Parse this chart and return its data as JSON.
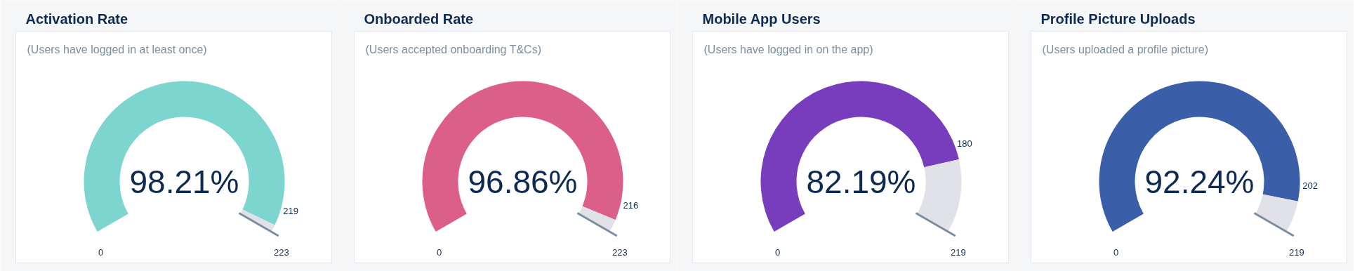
{
  "chart_data": [
    {
      "type": "donut",
      "title": "Activation Rate",
      "subtitle": "(Users have logged in at least once)",
      "categories": [
        null,
        null
      ],
      "values": [
        219,
        4
      ],
      "colors": [
        "#7dd5cf",
        "#e1e1ea"
      ],
      "value_labels": [
        "219",
        null
      ],
      "annotations": [
        "98.21%",
        "0",
        "223"
      ]
    },
    {
      "type": "donut",
      "title": "Onboarded Rate",
      "subtitle": "(Users accepted onboarding T&Cs)",
      "categories": [
        null,
        null
      ],
      "values": [
        216,
        7
      ],
      "colors": [
        "#dc5f8a",
        "#e1e1ea"
      ],
      "value_labels": [
        "216",
        null
      ],
      "annotations": [
        "96.86%",
        "0",
        "223"
      ]
    },
    {
      "type": "donut",
      "title": "Mobile App Users",
      "subtitle": "(Users have logged in on the app)",
      "categories": [
        null,
        null
      ],
      "values": [
        180,
        39
      ],
      "colors": [
        "#773dbd",
        "#e1e1ea"
      ],
      "value_labels": [
        "180",
        null
      ],
      "annotations": [
        "82.19%",
        "0",
        "219"
      ]
    },
    {
      "type": "donut",
      "title": "Profile Picture Uploads",
      "subtitle": "(Users uploaded a profile picture)",
      "categories": [
        null,
        null
      ],
      "values": [
        202,
        17
      ],
      "colors": [
        "#3a5fa8",
        "#e1e1ea"
      ],
      "value_labels": [
        "202",
        null
      ],
      "annotations": [
        "92.24%",
        "0",
        "219"
      ]
    }
  ]
}
